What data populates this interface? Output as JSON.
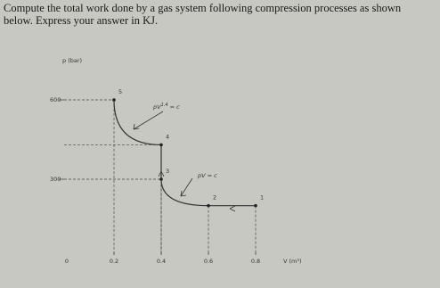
{
  "question": "Compute the total work done by a gas system following compression processes as shown below. Express your answer in KJ.",
  "chart_data": {
    "type": "line",
    "ylabel": "p (bar)",
    "xlabel": "V (m³)",
    "x": [
      0.8,
      0.6,
      0.4,
      0.4,
      0.2
    ],
    "series": [
      {
        "values": [
          200,
          200,
          300,
          430,
          600
        ],
        "point_labels": [
          "1",
          "2",
          "3",
          "4",
          "5"
        ],
        "color": "#333333"
      }
    ],
    "xlim": [
      0,
      0.9
    ],
    "xticks": [
      0,
      0.2,
      0.4,
      0.6,
      0.8
    ],
    "ylim": [
      0,
      700
    ],
    "yticks": [
      300,
      600
    ],
    "annotations": [
      [
        "pV",
        "1.4",
        " = c"
      ],
      [
        "pV",
        "",
        " = c"
      ]
    ]
  }
}
